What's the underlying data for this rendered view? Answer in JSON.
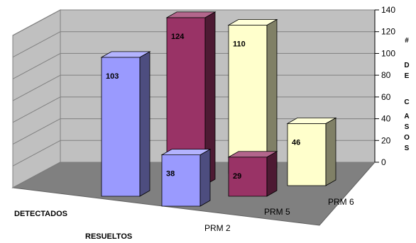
{
  "chart_data": {
    "type": "bar",
    "categories": [
      "PRM 2",
      "PRM 5",
      "PRM 6"
    ],
    "series": [
      {
        "name": "DETECTADOS",
        "values": [
          103,
          124,
          110
        ]
      },
      {
        "name": "RESUELTOS",
        "values": [
          38,
          29,
          46
        ]
      }
    ],
    "ylabel": [
      "#",
      "D",
      "E",
      "C",
      "A",
      "S",
      "O",
      "S"
    ],
    "ylim": [
      0,
      140
    ],
    "yticks": [
      0,
      20,
      40,
      60,
      80,
      100,
      120,
      140
    ],
    "grid": true,
    "colors": {
      "detectados": [
        "#9a9afe",
        "#993366",
        "#ffffcc"
      ],
      "resueltos": [
        "#9a9afe",
        "#993366",
        "#ffffcc"
      ],
      "wall": "#c0c0c0",
      "floor": "#808080"
    }
  }
}
